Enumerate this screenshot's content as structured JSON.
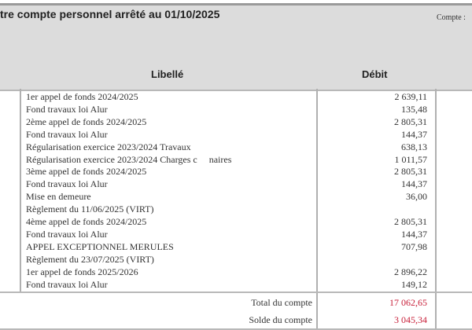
{
  "header": {
    "title": "tre compte personnel arrêté au 01/10/2025",
    "account_label": "Compte :"
  },
  "columns": {
    "libelle": "Libellé",
    "debit": "Débit"
  },
  "rows": [
    {
      "libelle": "1er appel de fonds 2024/2025",
      "debit": "2 639,11"
    },
    {
      "libelle": "Fond travaux loi Alur",
      "debit": "135,48"
    },
    {
      "libelle": "2ème appel de fonds 2024/2025",
      "debit": "2 805,31"
    },
    {
      "libelle": "Fond travaux loi Alur",
      "debit": "144,37"
    },
    {
      "libelle": "Régularisation exercice 2023/2024 Travaux",
      "debit": "638,13"
    },
    {
      "libelle": "Régularisation exercice 2023/2024 Charges c     naires",
      "debit": "1 011,57"
    },
    {
      "libelle": "3ème appel de fonds 2024/2025",
      "debit": "2 805,31"
    },
    {
      "libelle": "Fond travaux loi Alur",
      "debit": "144,37"
    },
    {
      "libelle": "Mise en demeure",
      "debit": "36,00"
    },
    {
      "libelle": "Règlement du 11/06/2025 (VIRT)",
      "debit": ""
    },
    {
      "libelle": "4ème appel de fonds 2024/2025",
      "debit": "2 805,31"
    },
    {
      "libelle": "Fond travaux loi Alur",
      "debit": "144,37"
    },
    {
      "libelle": "APPEL EXCEPTIONNEL MERULES",
      "debit": "707,98"
    },
    {
      "libelle": "Règlement du 23/07/2025 (VIRT)",
      "debit": ""
    },
    {
      "libelle": "1er appel de fonds 2025/2026",
      "debit": "2 896,22"
    },
    {
      "libelle": "Fond travaux loi Alur",
      "debit": "149,12"
    }
  ],
  "totals": [
    {
      "label": "Total du compte",
      "value": "17 062,65"
    },
    {
      "label": "Solde du compte",
      "value": "3 045,34"
    }
  ],
  "colors": {
    "header_bg": "#dcdcdc",
    "total_value": "#c8203a"
  }
}
